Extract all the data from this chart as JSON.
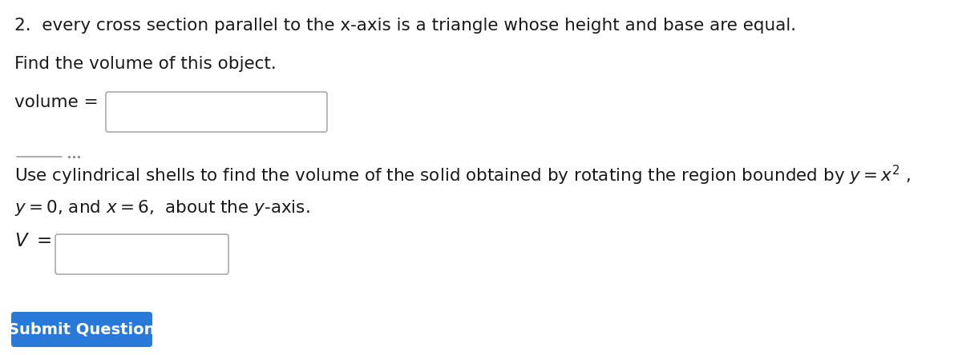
{
  "bg_color": "#ffffff",
  "text_color": "#1a1a1a",
  "line1": "2.  every cross section parallel to the x-axis is a triangle whose height and base are equal.",
  "line2": "Find the volume of this object.",
  "volume_label": "volume = ",
  "cyl_line1": "Use cylindrical shells to find the volume of the solid obtained by rotating the region bounded by $y = x^2$ ,",
  "cyl_line2": "$y = 0$, and $x = 6$,  about the $y$-axis.",
  "V_label": "$V\\ =$",
  "button_label": "Submit Question",
  "button_color": "#2979d8",
  "button_text_color": "#ffffff",
  "main_font_size": 15.5,
  "math_font_size": 15.5,
  "button_font_size": 14.0
}
